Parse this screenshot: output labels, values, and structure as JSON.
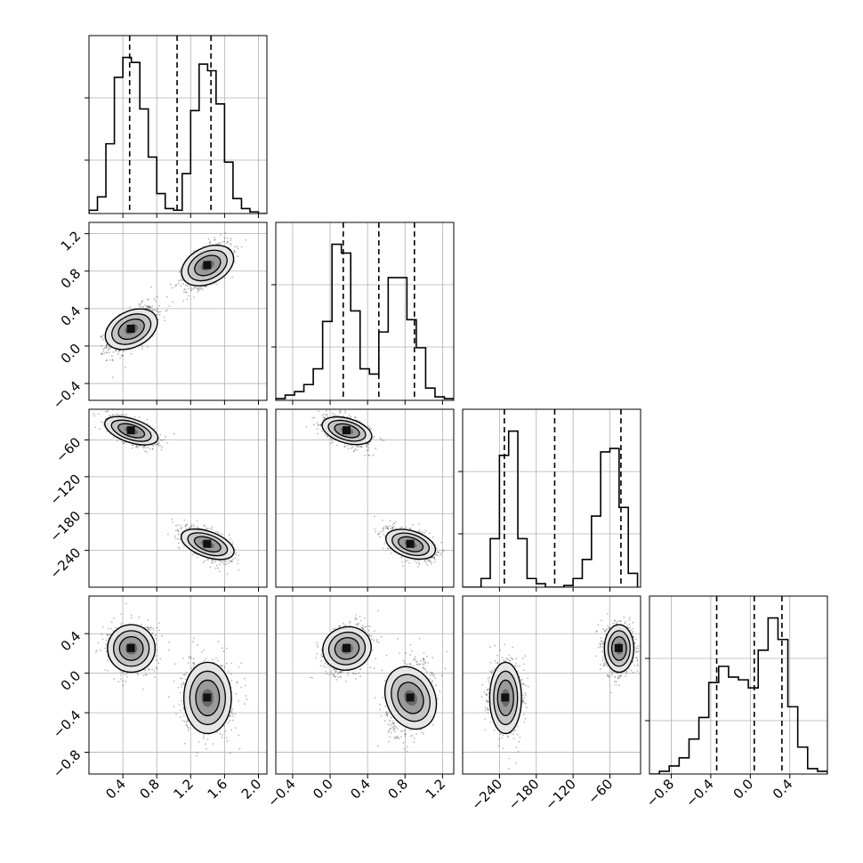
{
  "chart_data": {
    "type": "corner",
    "title": "",
    "grid": true,
    "n_params": 4,
    "params": [
      {
        "label": "",
        "range": [
          0.0,
          2.1
        ],
        "ticks": [
          {
            "v": 0.4,
            "label": "0.4"
          },
          {
            "v": 0.8,
            "label": "0.8"
          },
          {
            "v": 1.2,
            "label": "1.2"
          },
          {
            "v": 1.6,
            "label": "1.6"
          },
          {
            "v": 2.0,
            "label": "2.0"
          }
        ],
        "quantiles": [
          0.48,
          1.04,
          1.44
        ],
        "hist": {
          "edges": [
            0.0,
            0.1,
            0.2,
            0.3,
            0.4,
            0.5,
            0.6,
            0.7,
            0.8,
            0.9,
            1.0,
            1.1,
            1.2,
            1.3,
            1.4,
            1.5,
            1.6,
            1.7,
            1.8,
            1.9,
            2.0,
            2.1
          ],
          "counts": [
            2,
            10,
            42,
            82,
            94,
            91,
            63,
            34,
            12,
            3,
            2,
            24,
            62,
            90,
            86,
            66,
            31,
            9,
            3,
            1,
            0
          ]
        }
      },
      {
        "label": "",
        "range": [
          -0.58,
          1.32
        ],
        "ticks": [
          {
            "v": -0.4,
            "label": "−0.4"
          },
          {
            "v": 0.0,
            "label": "0.0"
          },
          {
            "v": 0.4,
            "label": "0.4"
          },
          {
            "v": 0.8,
            "label": "0.8"
          },
          {
            "v": 1.2,
            "label": "1.2"
          }
        ],
        "quantiles": [
          0.14,
          0.52,
          0.9
        ],
        "hist": {
          "edges": [
            -0.58,
            -0.48,
            -0.38,
            -0.28,
            -0.18,
            -0.08,
            0.02,
            0.12,
            0.22,
            0.32,
            0.42,
            0.52,
            0.62,
            0.72,
            0.82,
            0.92,
            1.02,
            1.12,
            1.22,
            1.32
          ],
          "counts": [
            1,
            3,
            5,
            9,
            18,
            45,
            89,
            84,
            51,
            18,
            15,
            39,
            70,
            70,
            46,
            30,
            7,
            2,
            1
          ]
        }
      },
      {
        "label": "",
        "range": [
          -300,
          -10
        ],
        "ticks": [
          {
            "v": -240,
            "label": "−240"
          },
          {
            "v": -180,
            "label": "−180"
          },
          {
            "v": -120,
            "label": "−120"
          },
          {
            "v": -60,
            "label": "−60"
          }
        ],
        "quantiles": [
          -232,
          -150,
          -42
        ],
        "hist": {
          "edges": [
            -300,
            -285,
            -270,
            -255,
            -240,
            -225,
            -210,
            -195,
            -180,
            -165,
            -150,
            -135,
            -120,
            -105,
            -90,
            -75,
            -60,
            -45,
            -30,
            -15
          ],
          "counts": [
            0,
            0,
            5,
            28,
            76,
            90,
            28,
            5,
            2,
            0,
            0,
            1,
            5,
            16,
            41,
            78,
            80,
            46,
            8
          ]
        }
      },
      {
        "label": "",
        "range": [
          -1.02,
          0.78
        ],
        "ticks": [
          {
            "v": -0.8,
            "label": "−0.8"
          },
          {
            "v": -0.4,
            "label": "−0.4"
          },
          {
            "v": 0.0,
            "label": "0.0"
          },
          {
            "v": 0.4,
            "label": "0.4"
          }
        ],
        "quantiles": [
          -0.34,
          0.04,
          0.32
        ],
        "hist": {
          "edges": [
            -1.02,
            -0.92,
            -0.82,
            -0.72,
            -0.62,
            -0.52,
            -0.42,
            -0.32,
            -0.22,
            -0.12,
            -0.02,
            0.08,
            0.18,
            0.28,
            0.38,
            0.48,
            0.58,
            0.68,
            0.78
          ],
          "counts": [
            0,
            1,
            3,
            6,
            13,
            21,
            34,
            40,
            36,
            35,
            32,
            46,
            58,
            50,
            25,
            10,
            2,
            1
          ]
        }
      }
    ],
    "modes": [
      {
        "mean": [
          0.5,
          0.18,
          -45,
          0.25
        ],
        "sd": [
          0.14,
          0.12,
          12,
          0.12
        ],
        "weight": 0.5
      },
      {
        "mean": [
          1.4,
          0.86,
          -230,
          -0.25
        ],
        "sd": [
          0.14,
          0.12,
          13,
          0.18
        ],
        "weight": 0.5
      }
    ],
    "correlations": [
      [
        1.0,
        0.6,
        -0.6,
        0.0
      ],
      [
        0.6,
        1.0,
        -0.5,
        0.3
      ],
      [
        -0.6,
        -0.5,
        1.0,
        0.0
      ],
      [
        0.0,
        0.3,
        0.0,
        1.0
      ]
    ]
  }
}
